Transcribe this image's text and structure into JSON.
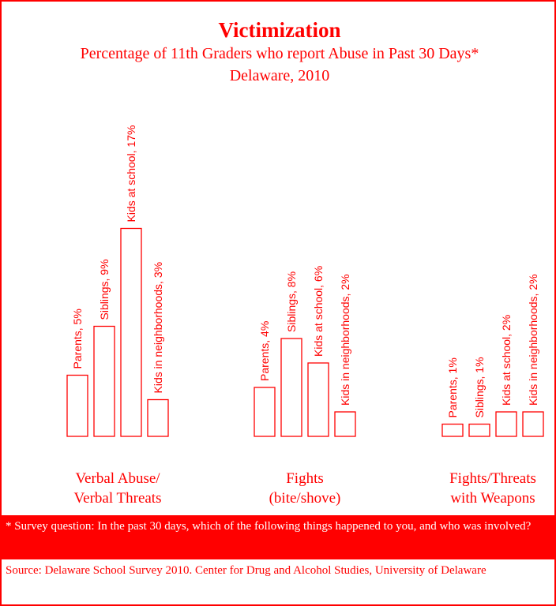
{
  "chart_data": {
    "type": "bar",
    "title": "Victimization",
    "subtitle": "Percentage of 11th Graders who report Abuse in Past 30 Days*",
    "subtitle2": "Delaware, 2010",
    "categories": [
      "Verbal Abuse/\nVerbal Threats",
      "Fights\n(bite/shove)",
      "Fights/Threats\nwith Weapons"
    ],
    "series": [
      {
        "name": "Parents",
        "color": "#ff0000",
        "values": [
          5,
          4,
          1
        ],
        "value_labels": [
          "Parents, 5%",
          "Parents, 4%",
          "Parents, 1%"
        ]
      },
      {
        "name": "Siblings",
        "color": "#ff0000",
        "values": [
          9,
          8,
          1
        ],
        "value_labels": [
          "Siblings, 9%",
          "Siblings, 8%",
          "Siblings, 1%"
        ]
      },
      {
        "name": "Kids at school",
        "color": "#ff0000",
        "values": [
          17,
          6,
          2
        ],
        "value_labels": [
          "Kids at school, 17%",
          "Kids at school, 6%",
          "Kids at school, 2%"
        ]
      },
      {
        "name": "Kids in neighborhoods",
        "color": "#ff0000",
        "values": [
          3,
          2,
          2
        ],
        "value_labels": [
          "Kids in neighborhoods, 3%",
          "Kids in neighborhoods, 2%",
          "Kids in neighborhoods, 2%"
        ]
      }
    ],
    "footnote": "* Survey question: In the past 30 days, which of the following things happened to you, and who was involved?",
    "source": "Source: Delaware School Survey 2010. Center for Drug and Alcohol Studies, University of Delaware"
  }
}
